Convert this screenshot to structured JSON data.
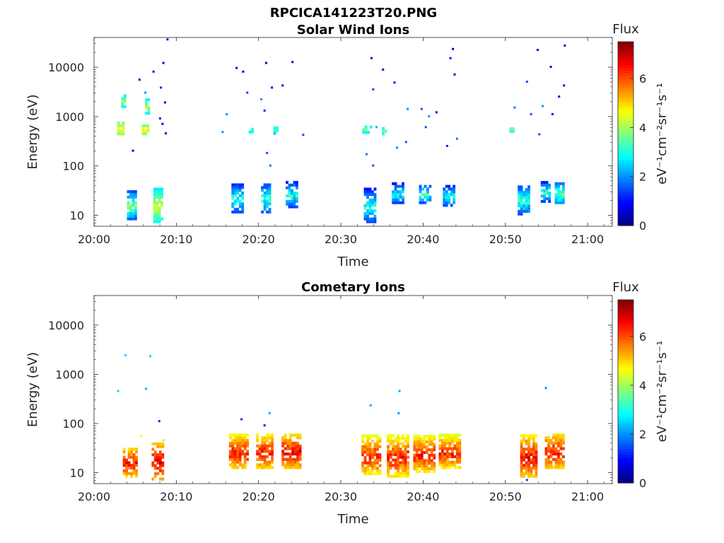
{
  "figure": {
    "suptitle": "RPCICA141223T20.PNG"
  },
  "colorbar": {
    "label_top": "Flux",
    "units": "eV⁻¹cm⁻²sr⁻¹s⁻¹",
    "ticks": [
      "0",
      "2",
      "4",
      "6"
    ],
    "range": [
      0,
      7.5
    ],
    "colormap": "jet"
  },
  "chart_data": [
    {
      "type": "heatmap",
      "title": "Solar Wind Ions",
      "xlabel": "Time",
      "ylabel": "Energy (eV)",
      "xlim_minutes_after_20_00": [
        0,
        63
      ],
      "ylim": [
        6,
        40000
      ],
      "yscale": "log",
      "x_ticks": [
        "20:00",
        "20:10",
        "20:20",
        "20:30",
        "20:40",
        "20:50",
        "21:00"
      ],
      "y_ticks": [
        "10",
        "100",
        "1000",
        "10000"
      ],
      "value_label": "Flux",
      "bursts": [
        {
          "t0": 2.7,
          "t1": 8.9,
          "clusters": [
            {
              "t0": 4.0,
              "t1": 4.9,
              "e_lo": 8,
              "e_hi": 30,
              "flux_min": 1.0,
              "flux_max": 4.5
            },
            {
              "t0": 7.2,
              "t1": 8.3,
              "e_lo": 7,
              "e_hi": 32,
              "flux_min": 2.5,
              "flux_max": 4.8
            },
            {
              "t0": 2.8,
              "t1": 3.6,
              "e_lo": 420,
              "e_hi": 700,
              "flux_min": 3.5,
              "flux_max": 5.2
            },
            {
              "t0": 5.8,
              "t1": 6.5,
              "e_lo": 420,
              "e_hi": 650,
              "flux_min": 3.5,
              "flux_max": 5.0
            },
            {
              "t0": 3.3,
              "t1": 3.8,
              "e_lo": 1500,
              "e_hi": 2500,
              "flux_min": 2.5,
              "flux_max": 4.5
            },
            {
              "t0": 6.2,
              "t1": 6.7,
              "e_lo": 1100,
              "e_hi": 2200,
              "flux_min": 2.5,
              "flux_max": 4.6
            }
          ],
          "scatter": [
            [
              4.6,
              200,
              0.8
            ],
            [
              5.4,
              5500,
              0.5
            ],
            [
              7.1,
              8000,
              0.5
            ],
            [
              8.3,
              12000,
              0.5
            ],
            [
              8.8,
              36000,
              0.5
            ],
            [
              8.5,
              1900,
              0.8
            ],
            [
              8.2,
              700,
              0.6
            ],
            [
              8.6,
              450,
              0.7
            ],
            [
              7.9,
              900,
              1.0
            ],
            [
              6.1,
              3000,
              2.0
            ],
            [
              8.0,
              3800,
              1.2
            ]
          ]
        },
        {
          "t0": 15.5,
          "t1": 25.3,
          "clusters": [
            {
              "t0": 16.7,
              "t1": 18.2,
              "e_lo": 11,
              "e_hi": 42,
              "flux_min": 0.8,
              "flux_max": 3.8
            },
            {
              "t0": 20.3,
              "t1": 21.5,
              "e_lo": 11,
              "e_hi": 42,
              "flux_min": 1.0,
              "flux_max": 3.8
            },
            {
              "t0": 23.3,
              "t1": 24.8,
              "e_lo": 14,
              "e_hi": 45,
              "flux_min": 0.8,
              "flux_max": 3.8
            },
            {
              "t0": 18.8,
              "t1": 19.3,
              "e_lo": 460,
              "e_hi": 550,
              "flux_min": 2.5,
              "flux_max": 3.8
            },
            {
              "t0": 21.8,
              "t1": 22.3,
              "e_lo": 430,
              "e_hi": 600,
              "flux_min": 2.2,
              "flux_max": 3.8
            }
          ],
          "scatter": [
            [
              17.2,
              9500,
              0.5
            ],
            [
              18.0,
              8000,
              0.5
            ],
            [
              20.8,
              12000,
              0.5
            ],
            [
              24.0,
              12500,
              0.5
            ],
            [
              21.5,
              3800,
              1.0
            ],
            [
              22.8,
              4200,
              0.8
            ],
            [
              18.5,
              3000,
              1.4
            ],
            [
              20.2,
              2200,
              2.0
            ],
            [
              20.6,
              1300,
              1.1
            ],
            [
              16.0,
              1100,
              2.0
            ],
            [
              15.5,
              480,
              2.0
            ],
            [
              25.3,
              420,
              1.5
            ],
            [
              20.9,
              180,
              1.5
            ],
            [
              21.3,
              100,
              1.8
            ]
          ]
        },
        {
          "t0": 32.5,
          "t1": 44.2,
          "clusters": [
            {
              "t0": 32.8,
              "t1": 34.0,
              "e_lo": 7,
              "e_hi": 32,
              "flux_min": 0.8,
              "flux_max": 3.5
            },
            {
              "t0": 36.2,
              "t1": 37.6,
              "e_lo": 17,
              "e_hi": 42,
              "flux_min": 0.8,
              "flux_max": 3.6
            },
            {
              "t0": 39.5,
              "t1": 40.7,
              "e_lo": 17,
              "e_hi": 40,
              "flux_min": 1.0,
              "flux_max": 3.8
            },
            {
              "t0": 42.4,
              "t1": 43.6,
              "e_lo": 15,
              "e_hi": 38,
              "flux_min": 0.8,
              "flux_max": 3.6
            },
            {
              "t0": 32.6,
              "t1": 33.5,
              "e_lo": 450,
              "e_hi": 620,
              "flux_min": 2.5,
              "flux_max": 4.0
            },
            {
              "t0": 35.0,
              "t1": 35.4,
              "e_lo": 420,
              "e_hi": 560,
              "flux_min": 2.8,
              "flux_max": 3.8
            }
          ],
          "scatter": [
            [
              33.6,
              15000,
              0.6
            ],
            [
              35.0,
              8800,
              0.5
            ],
            [
              43.5,
              23000,
              0.5
            ],
            [
              43.2,
              15000,
              0.6
            ],
            [
              43.7,
              7000,
              0.6
            ],
            [
              33.8,
              3500,
              1.5
            ],
            [
              36.4,
              4800,
              1.0
            ],
            [
              38.0,
              1400,
              2.0
            ],
            [
              39.7,
              1400,
              1.5
            ],
            [
              41.5,
              1200,
              0.8
            ],
            [
              40.2,
              600,
              1.5
            ],
            [
              44.0,
              350,
              1.8
            ],
            [
              42.8,
              250,
              1.2
            ],
            [
              34.2,
              600,
              2.2
            ],
            [
              37.8,
              300,
              1.6
            ],
            [
              36.7,
              230,
              2.0
            ],
            [
              33.0,
              170,
              1.8
            ],
            [
              33.8,
              100,
              1.5
            ],
            [
              40.6,
              1000,
              2.0
            ]
          ]
        },
        {
          "t0": 50.5,
          "t1": 57.0,
          "clusters": [
            {
              "t0": 51.5,
              "t1": 52.7,
              "e_lo": 10,
              "e_hi": 40,
              "flux_min": 1.0,
              "flux_max": 3.8
            },
            {
              "t0": 54.3,
              "t1": 55.2,
              "e_lo": 18,
              "e_hi": 45,
              "flux_min": 0.8,
              "flux_max": 3.8
            },
            {
              "t0": 56.0,
              "t1": 56.9,
              "e_lo": 17,
              "e_hi": 42,
              "flux_min": 1.5,
              "flux_max": 4.2
            },
            {
              "t0": 50.5,
              "t1": 50.9,
              "e_lo": 470,
              "e_hi": 600,
              "flux_min": 3.0,
              "flux_max": 4.0
            }
          ],
          "scatter": [
            [
              53.8,
              22000,
              0.5
            ],
            [
              55.4,
              10000,
              0.5
            ],
            [
              56.4,
              2500,
              0.8
            ],
            [
              57.0,
              4200,
              1.0
            ],
            [
              57.1,
              27000,
              0.5
            ],
            [
              52.5,
              5000,
              1.5
            ],
            [
              53.0,
              1100,
              1.5
            ],
            [
              55.6,
              1100,
              0.8
            ],
            [
              51.0,
              1500,
              1.8
            ],
            [
              54.0,
              430,
              1.5
            ],
            [
              54.4,
              1600,
              2.0
            ]
          ]
        }
      ]
    },
    {
      "type": "heatmap",
      "title": "Cometary Ions",
      "xlabel": "Time",
      "ylabel": "Energy (eV)",
      "xlim_minutes_after_20_00": [
        0,
        63
      ],
      "ylim": [
        6,
        40000
      ],
      "yscale": "log",
      "x_ticks": [
        "20:00",
        "20:10",
        "20:20",
        "20:30",
        "20:40",
        "20:50",
        "21:00"
      ],
      "y_ticks": [
        "10",
        "100",
        "1000",
        "10000"
      ],
      "value_label": "Flux",
      "bursts": [
        {
          "t0": 2.7,
          "t1": 8.9,
          "clusters": [
            {
              "t0": 3.5,
              "t1": 5.0,
              "e_lo": 8,
              "e_hi": 32,
              "flux_min": 4.5,
              "flux_max": 7.0
            },
            {
              "t0": 7.0,
              "t1": 8.5,
              "e_lo": 7,
              "e_hi": 38,
              "flux_min": 4.8,
              "flux_max": 7.2
            }
          ],
          "scatter": [
            [
              2.8,
              450,
              2.5
            ],
            [
              3.7,
              2400,
              2.5
            ],
            [
              6.2,
              500,
              2.2
            ],
            [
              6.7,
              2300,
              2.5
            ],
            [
              7.8,
              110,
              1.2
            ],
            [
              5.6,
              55,
              4.5
            ],
            [
              8.3,
              45,
              4.0
            ]
          ]
        },
        {
          "t0": 15.5,
          "t1": 25.3,
          "clusters": [
            {
              "t0": 16.4,
              "t1": 18.6,
              "e_lo": 12,
              "e_hi": 55,
              "flux_min": 4.5,
              "flux_max": 7.0
            },
            {
              "t0": 19.7,
              "t1": 21.7,
              "e_lo": 12,
              "e_hi": 55,
              "flux_min": 4.5,
              "flux_max": 7.0
            },
            {
              "t0": 22.8,
              "t1": 25.0,
              "e_lo": 12,
              "e_hi": 60,
              "flux_min": 4.5,
              "flux_max": 7.2
            }
          ],
          "scatter": [
            [
              17.8,
              120,
              1.2
            ],
            [
              21.2,
              160,
              2.2
            ],
            [
              20.6,
              90,
              1.0
            ]
          ]
        },
        {
          "t0": 32.5,
          "t1": 44.2,
          "clusters": [
            {
              "t0": 32.5,
              "t1": 34.6,
              "e_lo": 9,
              "e_hi": 55,
              "flux_min": 4.2,
              "flux_max": 7.0
            },
            {
              "t0": 35.6,
              "t1": 38.0,
              "e_lo": 8,
              "e_hi": 55,
              "flux_min": 4.2,
              "flux_max": 7.0
            },
            {
              "t0": 38.8,
              "t1": 41.2,
              "e_lo": 10,
              "e_hi": 55,
              "flux_min": 4.2,
              "flux_max": 7.0
            },
            {
              "t0": 41.9,
              "t1": 44.3,
              "e_lo": 12,
              "e_hi": 55,
              "flux_min": 4.2,
              "flux_max": 7.0
            }
          ],
          "scatter": [
            [
              33.5,
              230,
              2.2
            ],
            [
              37.0,
              450,
              2.2
            ],
            [
              36.9,
              160,
              2.0
            ]
          ]
        },
        {
          "t0": 50.5,
          "t1": 57.0,
          "clusters": [
            {
              "t0": 51.8,
              "t1": 53.6,
              "e_lo": 8,
              "e_hi": 55,
              "flux_min": 4.5,
              "flux_max": 7.2
            },
            {
              "t0": 54.8,
              "t1": 56.9,
              "e_lo": 12,
              "e_hi": 62,
              "flux_min": 4.5,
              "flux_max": 7.0
            }
          ],
          "scatter": [
            [
              54.8,
              520,
              2.0
            ],
            [
              52.5,
              7,
              1.5
            ]
          ]
        }
      ]
    }
  ]
}
